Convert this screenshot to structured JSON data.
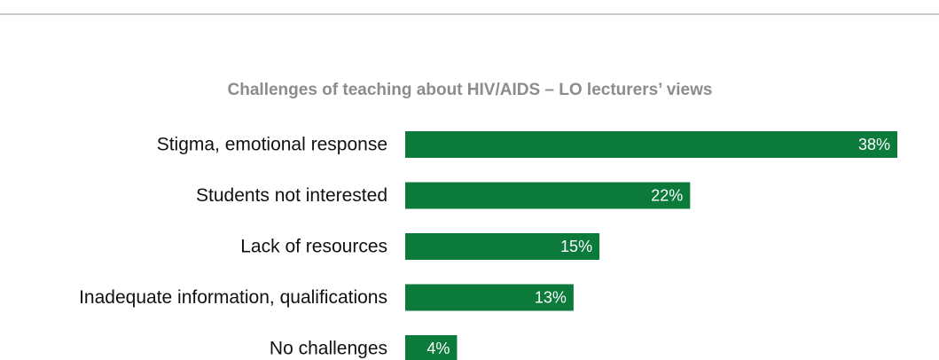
{
  "chart_data": {
    "type": "bar",
    "orientation": "horizontal",
    "title": "Challenges of teaching about HIV/AIDS – LO lecturers’ views",
    "categories": [
      "Stigma, emotional response",
      "Students not interested",
      "Lack of resources",
      "Inadequate information, qualifications",
      "No challenges"
    ],
    "values": [
      38,
      22,
      15,
      13,
      4
    ],
    "value_labels": [
      "38%",
      "22%",
      "15%",
      "13%",
      "4%"
    ],
    "color": "#0b7a3b",
    "xlim": [
      0,
      38
    ]
  }
}
